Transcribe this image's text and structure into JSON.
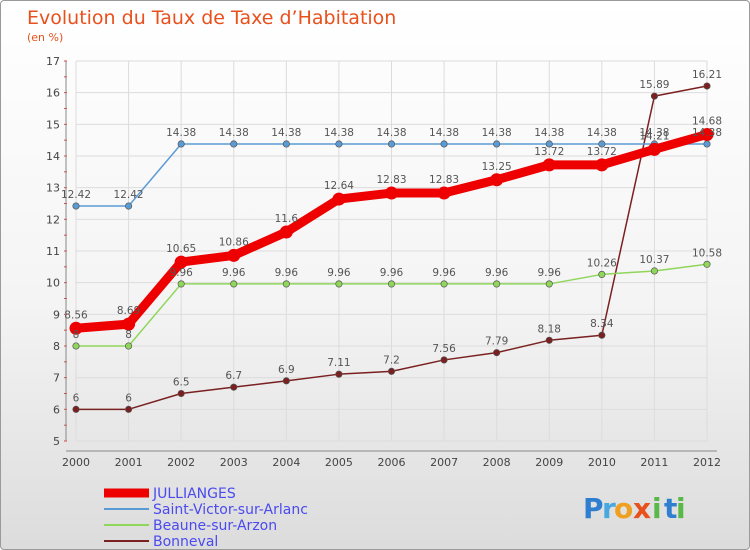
{
  "header": {
    "title": "Evolution du Taux de Taxe d’Habitation",
    "subtitle": "(en %)"
  },
  "logo": {
    "letters": [
      "P",
      "r",
      "o",
      "x",
      "i",
      "t",
      "i"
    ],
    "colors": [
      "#2f7fd0",
      "#49a8e0",
      "#f0a020",
      "#e8501c",
      "#58b848",
      "#2f7fd0",
      "#58b848"
    ]
  },
  "chart_data": {
    "type": "line",
    "title": "Evolution du Taux de Taxe d’Habitation",
    "subtitle": "(en %)",
    "xlabel": "",
    "ylabel": "",
    "x": [
      "2000",
      "2001",
      "2002",
      "2003",
      "2004",
      "2005",
      "2006",
      "2007",
      "2008",
      "2009",
      "2010",
      "2011",
      "2012"
    ],
    "ylim": [
      5,
      17
    ],
    "yticks": [
      "5",
      "6",
      "7",
      "8",
      "9",
      "10",
      "11",
      "12",
      "13",
      "14",
      "15",
      "16",
      "17"
    ],
    "grid": true,
    "legend_position": "bottom-left",
    "series": [
      {
        "name": "JULLIANGES",
        "color": "#ee0000",
        "values": [
          8.56,
          8.69,
          10.65,
          10.86,
          11.6,
          12.64,
          12.83,
          12.83,
          13.25,
          13.72,
          13.72,
          14.21,
          14.68
        ],
        "labels": [
          "8.56",
          "8.69",
          "10.65",
          "10.86",
          "11.6",
          "12.64",
          "12.83",
          "12.83",
          "13.25",
          "13.72",
          "13.72",
          "14.21",
          "14.68"
        ]
      },
      {
        "name": "Saint-Victor-sur-Arlanc",
        "color": "#5b9bd5",
        "values": [
          12.42,
          12.42,
          14.38,
          14.38,
          14.38,
          14.38,
          14.38,
          14.38,
          14.38,
          14.38,
          14.38,
          14.38,
          14.38
        ],
        "labels": [
          "12.42",
          "12.42",
          "14.38",
          "14.38",
          "14.38",
          "14.38",
          "14.38",
          "14.38",
          "14.38",
          "14.38",
          "14.38",
          "14.38",
          "14.38"
        ]
      },
      {
        "name": "Beaune-sur-Arzon",
        "color": "#8fd65a",
        "values": [
          8,
          8,
          9.96,
          9.96,
          9.96,
          9.96,
          9.96,
          9.96,
          9.96,
          9.96,
          10.26,
          10.37,
          10.58
        ],
        "labels": [
          "8",
          "8",
          "9.96",
          "9.96",
          "9.96",
          "9.96",
          "9.96",
          "9.96",
          "9.96",
          "9.96",
          "10.26",
          "10.37",
          "10.58"
        ]
      },
      {
        "name": "Bonneval",
        "color": "#7a2020",
        "values": [
          6,
          6,
          6.5,
          6.7,
          6.9,
          7.11,
          7.2,
          7.56,
          7.79,
          8.18,
          8.34,
          15.89,
          16.21
        ],
        "labels": [
          "6",
          "6",
          "6.5",
          "6.7",
          "6.9",
          "7.11",
          "7.2",
          "7.56",
          "7.79",
          "8.18",
          "8.34",
          "15.89",
          "16.21"
        ]
      }
    ]
  }
}
